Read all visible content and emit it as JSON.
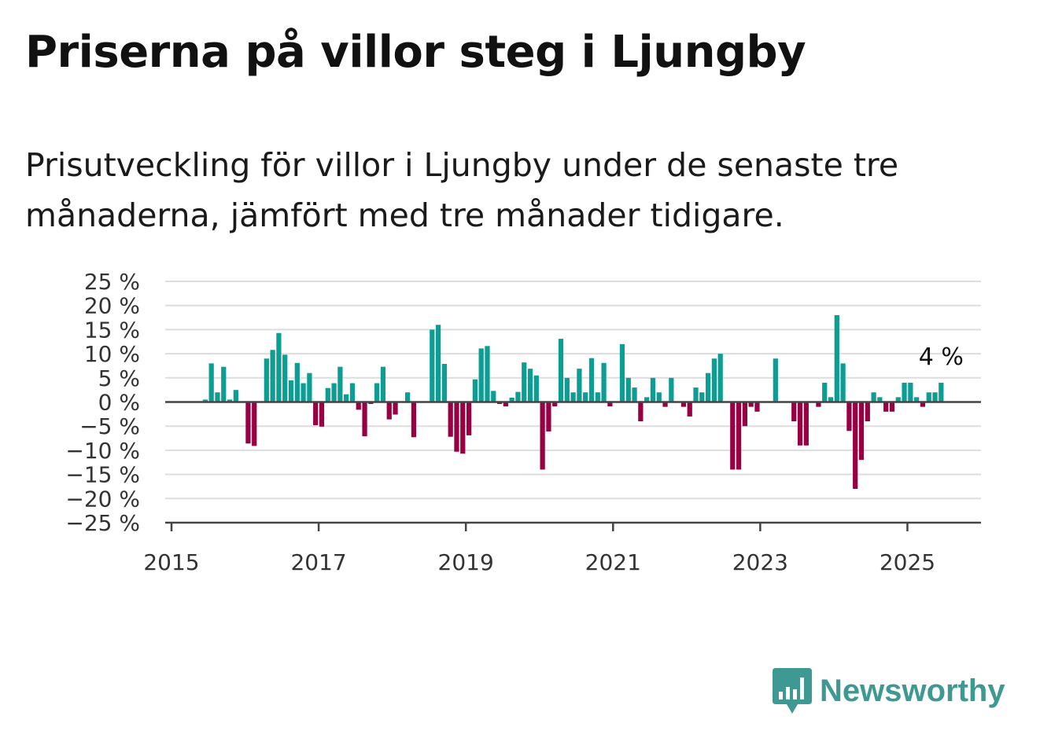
{
  "title": "Priserna på villor steg i Ljungby",
  "subtitle": "Prisutveckling för villor i Ljungby under de senaste tre månaderna, jämfört med tre månader tidigare.",
  "brand": {
    "name": "Newsworthy",
    "logo_icon": "bar-chart-speech-bubble-icon",
    "color": "#3d9991"
  },
  "chart_data": {
    "type": "bar",
    "title": "Priserna på villor steg i Ljungby",
    "subtitle": "Prisutveckling för villor i Ljungby under de senaste tre månaderna, jämfört med tre månader tidigare.",
    "xlabel": "",
    "ylabel": "",
    "ylim": [
      -25,
      25
    ],
    "yticks": [
      25,
      20,
      15,
      10,
      5,
      0,
      -5,
      -10,
      -15,
      -20,
      -25
    ],
    "ytick_labels": [
      "25 %",
      "20 %",
      "15 %",
      "10 %",
      "5 %",
      "0 %",
      "−5 %",
      "−10 %",
      "−15 %",
      "−20 %",
      "−25 %"
    ],
    "xlim": [
      "2015-01",
      "2026-01"
    ],
    "xticks": [
      "2015-01",
      "2017-01",
      "2019-01",
      "2021-01",
      "2023-01",
      "2025-01"
    ],
    "xtick_labels": [
      "2015",
      "2017",
      "2019",
      "2021",
      "2023",
      "2025"
    ],
    "grid": true,
    "colors": {
      "positive": "#0c9e93",
      "negative": "#990044",
      "grid": "#dddddd",
      "axis": "#444444"
    },
    "annotation": {
      "text": "4 %",
      "x": "2025-06"
    },
    "x": [
      "2015-06",
      "2015-07",
      "2015-08",
      "2015-09",
      "2015-10",
      "2015-11",
      "2015-12",
      "2016-01",
      "2016-02",
      "2016-03",
      "2016-04",
      "2016-05",
      "2016-06",
      "2016-07",
      "2016-08",
      "2016-09",
      "2016-10",
      "2016-11",
      "2016-12",
      "2017-01",
      "2017-02",
      "2017-03",
      "2017-04",
      "2017-05",
      "2017-06",
      "2017-07",
      "2017-08",
      "2017-09",
      "2017-10",
      "2017-11",
      "2017-12",
      "2018-01",
      "2018-02",
      "2018-03",
      "2018-04",
      "2018-05",
      "2018-06",
      "2018-07",
      "2018-08",
      "2018-09",
      "2018-10",
      "2018-11",
      "2018-12",
      "2019-01",
      "2019-02",
      "2019-03",
      "2019-04",
      "2019-05",
      "2019-06",
      "2019-07",
      "2019-08",
      "2019-09",
      "2019-10",
      "2019-11",
      "2019-12",
      "2020-01",
      "2020-02",
      "2020-03",
      "2020-04",
      "2020-05",
      "2020-06",
      "2020-07",
      "2020-08",
      "2020-09",
      "2020-10",
      "2020-11",
      "2020-12",
      "2021-01",
      "2021-02",
      "2021-03",
      "2021-04",
      "2021-05",
      "2021-06",
      "2021-07",
      "2021-08",
      "2021-09",
      "2021-10",
      "2021-11",
      "2021-12",
      "2022-01",
      "2022-02",
      "2022-03",
      "2022-04",
      "2022-05",
      "2022-06",
      "2022-07",
      "2022-08",
      "2022-09",
      "2022-10",
      "2022-11",
      "2022-12",
      "2023-01",
      "2023-02",
      "2023-03",
      "2023-04",
      "2023-05",
      "2023-06",
      "2023-07",
      "2023-08",
      "2023-09",
      "2023-10",
      "2023-11",
      "2023-12",
      "2024-01",
      "2024-02",
      "2024-03",
      "2024-04",
      "2024-05",
      "2024-06",
      "2024-07",
      "2024-08",
      "2024-09",
      "2024-10",
      "2024-11",
      "2024-12",
      "2025-01",
      "2025-02",
      "2025-03",
      "2025-04",
      "2025-05",
      "2025-06"
    ],
    "values": [
      0.5,
      8,
      2,
      7.3,
      0.5,
      2.5,
      0,
      -8.6,
      -9.1,
      0,
      9,
      10.8,
      14.3,
      9.8,
      4.5,
      8.1,
      3.9,
      6,
      -4.8,
      -5.1,
      2.9,
      3.9,
      7.3,
      1.6,
      3.9,
      -1.6,
      -7.1,
      -0.4,
      3.9,
      7.3,
      -3.6,
      -2.6,
      0,
      2,
      -7.3,
      0,
      0,
      15,
      16,
      7.9,
      -7.2,
      -10.3,
      -10.7,
      -6.9,
      4.7,
      11.1,
      11.6,
      2.3,
      -0.4,
      -0.9,
      0.9,
      2.1,
      8.2,
      6.9,
      5.5,
      -14,
      -6.1,
      -0.9,
      13.1,
      5,
      2,
      6.9,
      2,
      9.1,
      2,
      8.1,
      -0.9,
      0,
      12,
      5,
      3,
      -4,
      1,
      5,
      2,
      -1,
      5,
      0,
      -1,
      -3,
      3,
      2,
      6,
      9,
      10,
      0,
      -14,
      -14,
      -5,
      -1,
      -2,
      0,
      0,
      9,
      0,
      0,
      -4,
      -9,
      -9,
      0,
      -1,
      4,
      1,
      18,
      8,
      -6,
      -18,
      -12,
      -4,
      2,
      1,
      -2,
      -2,
      1,
      4,
      4,
      1,
      -1,
      2,
      2,
      4
    ]
  }
}
